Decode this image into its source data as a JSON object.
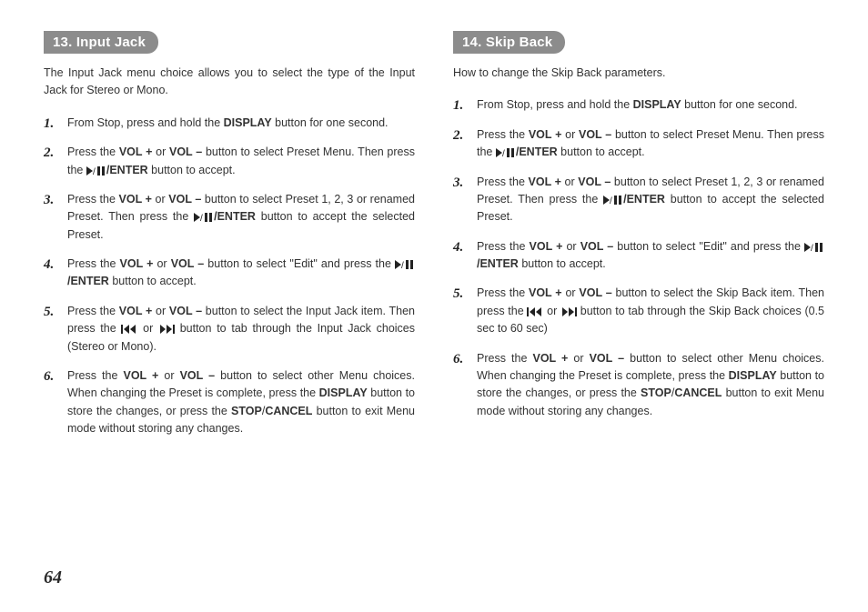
{
  "page_number": "64",
  "left": {
    "heading": "13. Input Jack",
    "intro": "The Input Jack menu choice allows you to select the type of the Input Jack for Stereo or Mono.",
    "steps": [
      {
        "pre": "From Stop, press and hold the ",
        "b1": "DISPLAY",
        "post": " button for one second."
      },
      {
        "pre": "Press the ",
        "b1": "VOL +",
        "mid1": " or ",
        "b2": "VOL –",
        "mid2": " button to select Preset Menu. Then press the ",
        "icon": "playpause",
        "b3": "/ENTER",
        "post": " button to accept."
      },
      {
        "pre": "Press the ",
        "b1": "VOL +",
        "mid1": " or ",
        "b2": "VOL –",
        "mid2": " button to select Preset 1, 2, 3 or renamed Preset. Then press the ",
        "icon": "playpause",
        "b3": "/ENTER",
        "post": " button to accept the selected Preset."
      },
      {
        "pre": "Press the ",
        "b1": "VOL +",
        "mid1": " or ",
        "b2": "VOL –",
        "mid2": " button to select \"Edit\" and press the ",
        "icon": "playpause",
        "b3": "/ENTER",
        "post": " button to accept."
      },
      {
        "pre": "Press the ",
        "b1": "VOL +",
        "mid1": " or ",
        "b2": "VOL –",
        "mid2": " button to select the Input Jack item. Then press the ",
        "icon": "prevnext",
        "post": " button to tab through the Input Jack choices (Stereo or Mono)."
      },
      {
        "pre": "Press the ",
        "b1": "VOL +",
        "mid1": " or ",
        "b2": "VOL –",
        "mid2": " button to select other Menu choices. When changing the Preset is complete, press the ",
        "b3": "DISPLAY",
        "mid3": " button to store the changes, or press the ",
        "b4": "STOP",
        "mid4": "/",
        "b5": "CANCEL",
        "post": " button to exit Menu mode without storing any changes."
      }
    ]
  },
  "right": {
    "heading": "14. Skip Back",
    "intro": "How to change the Skip Back parameters.",
    "steps": [
      {
        "pre": "From Stop, press and hold the ",
        "b1": "DISPLAY",
        "post": " button for one second."
      },
      {
        "pre": "Press the ",
        "b1": "VOL +",
        "mid1": " or ",
        "b2": "VOL –",
        "mid2": " button to select Preset Menu. Then press the ",
        "icon": "playpause",
        "b3": "/ENTER",
        "post": " button to accept."
      },
      {
        "pre": "Press the ",
        "b1": "VOL +",
        "mid1": " or ",
        "b2": "VOL –",
        "mid2": " button to select Preset 1, 2, 3 or renamed Preset. Then press the ",
        "icon": "playpause",
        "b3": "/ENTER",
        "post": " button to accept the selected Preset."
      },
      {
        "pre": "Press the ",
        "b1": "VOL +",
        "mid1": " or ",
        "b2": "VOL –",
        "mid2": " button to select \"Edit\" and press the ",
        "icon": "playpause",
        "b3": "/ENTER",
        "post": " button to accept."
      },
      {
        "pre": "Press the ",
        "b1": "VOL +",
        "mid1": " or ",
        "b2": "VOL –",
        "mid2": " button to select the Skip Back item. Then press the ",
        "icon": "prevnext",
        "post": " button to tab through the Skip Back choices (0.5 sec to 60 sec)"
      },
      {
        "pre": "Press the ",
        "b1": "VOL +",
        "mid1": " or ",
        "b2": "VOL –",
        "mid2": " button to select other Menu choices. When changing the Preset is complete, press the ",
        "b3": "DISPLAY",
        "mid3": " button to store the changes, or press the ",
        "b4": "STOP",
        "mid4": "/",
        "b5": "CANCEL",
        "post": " button to exit Menu mode without storing any changes."
      }
    ]
  },
  "icons": {
    "playpause": "play-pause-icon",
    "prevnext": "prev-next-icon"
  }
}
